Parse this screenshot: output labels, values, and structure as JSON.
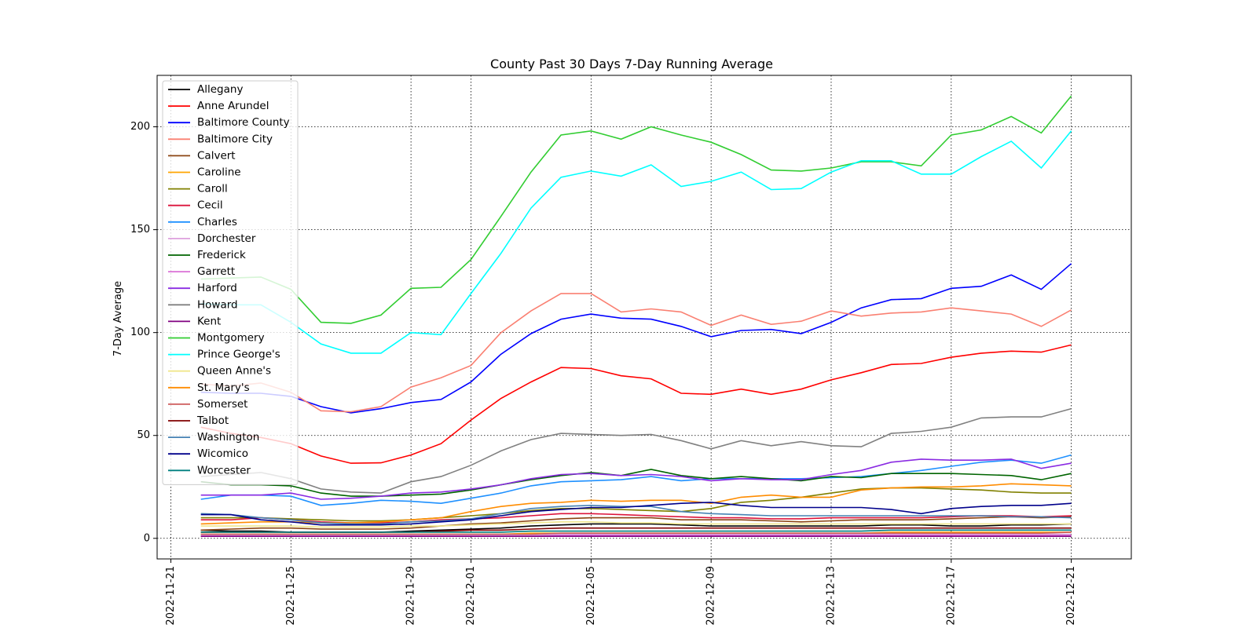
{
  "chart_data": {
    "type": "line",
    "title": "County Past 30 Days 7-Day Running Average",
    "xlabel": "",
    "ylabel": "7-Day Average",
    "x_ticks": [
      "2022-11-21",
      "2022-11-25",
      "2022-11-29",
      "2022-12-01",
      "2022-12-05",
      "2022-12-09",
      "2022-12-13",
      "2022-12-17",
      "2022-12-21"
    ],
    "y_ticks": [
      0,
      50,
      100,
      150,
      200
    ],
    "xlim": [
      "2022-11-20T13:00",
      "2022-12-23T00:00"
    ],
    "ylim": [
      -10,
      225
    ],
    "grid": true,
    "legend_position": "upper-left",
    "x": [
      "2022-11-22",
      "2022-11-23",
      "2022-11-24",
      "2022-11-25",
      "2022-11-26",
      "2022-11-27",
      "2022-11-28",
      "2022-11-29",
      "2022-11-30",
      "2022-12-01",
      "2022-12-02",
      "2022-12-03",
      "2022-12-04",
      "2022-12-05",
      "2022-12-06",
      "2022-12-07",
      "2022-12-08",
      "2022-12-09",
      "2022-12-10",
      "2022-12-11",
      "2022-12-12",
      "2022-12-13",
      "2022-12-14",
      "2022-12-15",
      "2022-12-16",
      "2022-12-17",
      "2022-12-18",
      "2022-12-19",
      "2022-12-20",
      "2022-12-21"
    ],
    "series": [
      {
        "name": "Allegany",
        "color": "#000000",
        "values": [
          4,
          3.5,
          3.5,
          3,
          3,
          3,
          3,
          3.5,
          4,
          4.5,
          5,
          6,
          6.5,
          7,
          7,
          7,
          6.5,
          6,
          6,
          6,
          6,
          6,
          6,
          6.5,
          6.5,
          6,
          6,
          6.5,
          6.5,
          7
        ]
      },
      {
        "name": "Anne Arundel",
        "color": "#ff0000",
        "values": [
          54,
          51,
          49,
          46,
          40,
          36.5,
          36.7,
          40.5,
          46,
          57.5,
          68,
          76,
          83,
          82.5,
          79,
          77.5,
          70.5,
          70,
          72.5,
          70,
          72.5,
          77,
          80.5,
          84.5,
          85,
          88,
          90,
          91,
          90.5,
          94
        ]
      },
      {
        "name": "Baltimore County",
        "color": "#0000ff",
        "values": [
          71,
          70.5,
          70.5,
          69,
          64,
          61,
          63,
          66,
          67.5,
          76,
          89.5,
          99.5,
          106.5,
          109,
          107,
          106.5,
          103,
          98,
          101,
          101.5,
          99.5,
          105,
          112,
          116,
          116.5,
          121.5,
          122.5,
          128,
          121,
          133.5
        ]
      },
      {
        "name": "Baltimore City",
        "color": "#fa8072",
        "values": [
          75,
          74,
          75.5,
          71,
          62,
          61.5,
          64,
          73.5,
          78,
          84,
          100,
          110.5,
          119,
          119,
          110,
          111.5,
          110,
          103.5,
          108.5,
          104,
          105.5,
          110.5,
          108,
          109.5,
          110,
          112,
          110.5,
          109,
          103,
          111
        ]
      },
      {
        "name": "Calvert",
        "color": "#8b4513",
        "values": [
          4,
          4.5,
          5,
          5,
          4.5,
          4.5,
          4.5,
          5,
          6,
          7,
          7.5,
          8.5,
          9.5,
          10,
          10,
          10,
          9,
          9,
          9,
          8.5,
          8,
          8.5,
          9,
          9,
          9,
          9.5,
          10,
          10.5,
          10,
          10.5
        ]
      },
      {
        "name": "Caroline",
        "color": "#ffa500",
        "values": [
          2,
          2,
          2,
          2,
          2,
          2,
          2,
          2,
          2,
          2,
          2,
          2.5,
          2.5,
          2.5,
          2.5,
          2.5,
          2.5,
          2.5,
          2.5,
          2.5,
          2.5,
          2.5,
          2.5,
          3,
          3,
          3,
          3,
          3,
          3,
          3
        ]
      },
      {
        "name": "Caroll",
        "color": "#808000",
        "values": [
          10,
          10,
          10,
          9.5,
          9,
          8.5,
          8.5,
          9,
          10,
          11,
          12,
          13.5,
          14.5,
          14.5,
          14,
          13.5,
          13,
          14.5,
          17.5,
          18.5,
          20,
          22,
          24,
          24.5,
          24.5,
          24,
          23.5,
          22.5,
          22,
          22
        ]
      },
      {
        "name": "Cecil",
        "color": "#dc143c",
        "values": [
          9,
          9,
          10,
          9,
          8,
          7.5,
          7.5,
          8,
          9,
          9.5,
          10,
          11,
          12,
          12,
          11.5,
          11,
          10.5,
          10,
          10,
          9.5,
          9.5,
          10,
          10,
          10,
          10,
          10.5,
          11,
          11,
          10.5,
          11
        ]
      },
      {
        "name": "Charles",
        "color": "#1e90ff",
        "values": [
          19,
          21,
          21,
          20.5,
          16,
          17,
          18.5,
          18,
          17,
          19.5,
          22,
          25.5,
          27.5,
          28,
          28.5,
          30,
          28,
          29,
          29,
          29,
          29,
          29.5,
          30,
          31.5,
          33,
          35,
          37,
          38,
          36.5,
          40.5
        ]
      },
      {
        "name": "Dorchester",
        "color": "#dda0dd",
        "values": [
          1.5,
          1.5,
          1.5,
          1.5,
          1.5,
          1.5,
          1.5,
          1.5,
          1.5,
          1.5,
          1.5,
          1.5,
          2,
          2,
          2,
          2,
          2,
          2,
          2,
          2,
          2,
          2,
          2,
          2,
          2,
          2,
          2,
          2,
          2,
          2
        ]
      },
      {
        "name": "Frederick",
        "color": "#006400",
        "values": [
          27.5,
          26,
          26,
          25.5,
          22,
          20.5,
          20.5,
          21,
          21.5,
          23.5,
          26,
          28.5,
          30.5,
          32,
          30.5,
          33.5,
          30.5,
          29,
          30,
          29,
          28,
          30,
          29.5,
          31.5,
          31.5,
          31.5,
          31,
          30.5,
          28.5,
          31.5
        ]
      },
      {
        "name": "Garrett",
        "color": "#da70d6",
        "values": [
          1,
          1,
          1,
          1,
          1,
          1,
          1,
          1,
          1,
          1,
          1,
          1,
          1.5,
          1.5,
          1.5,
          1.5,
          1.5,
          1.5,
          1.5,
          1.5,
          1.5,
          1.5,
          1.5,
          1.5,
          1.5,
          1.5,
          1.5,
          1.5,
          1.5,
          1.5
        ]
      },
      {
        "name": "Harford",
        "color": "#8a2be2",
        "values": [
          21,
          21,
          21,
          22,
          19,
          19.5,
          20.5,
          22,
          22.5,
          24,
          26,
          29,
          31,
          31.5,
          30.5,
          31,
          30,
          28,
          29,
          28.5,
          28.5,
          31,
          33,
          37,
          38.5,
          38,
          38,
          38.5,
          34,
          36.5
        ]
      },
      {
        "name": "Howard",
        "color": "#808080",
        "values": [
          30,
          31,
          32,
          29,
          24,
          22.5,
          22,
          27.5,
          30,
          35.5,
          42.5,
          48,
          51,
          50.5,
          50,
          50.5,
          47.5,
          43.5,
          47.5,
          45,
          47,
          45,
          44.5,
          51,
          52,
          54,
          58.5,
          59,
          59,
          63
        ]
      },
      {
        "name": "Kent",
        "color": "#800080",
        "values": [
          1,
          1,
          1,
          1,
          1,
          1,
          1,
          1,
          1,
          1,
          1,
          1,
          1,
          1,
          1,
          1,
          1,
          1,
          1,
          1,
          1,
          1,
          1,
          1,
          1,
          1,
          1,
          1,
          1,
          1
        ]
      },
      {
        "name": "Montgomery",
        "color": "#32cd32",
        "values": [
          126,
          126.5,
          127,
          121,
          105,
          104.5,
          108.5,
          121.5,
          122,
          135.5,
          156.5,
          178,
          196,
          198,
          194,
          200,
          196,
          192.5,
          186.5,
          179,
          178.5,
          180,
          183,
          183,
          181,
          196,
          198.5,
          205,
          197,
          215
        ]
      },
      {
        "name": "Prince George's",
        "color": "#00ffff",
        "values": [
          114,
          113.5,
          113.5,
          105,
          94.5,
          90,
          90,
          100,
          99,
          119,
          138.5,
          160.5,
          175.5,
          178.5,
          176,
          181.5,
          171,
          173.5,
          178,
          169.5,
          170,
          178,
          183.5,
          183.5,
          177,
          177,
          185.5,
          193,
          180,
          198
        ]
      },
      {
        "name": "Queen Anne's",
        "color": "#f0e68c",
        "values": [
          6,
          6,
          6,
          6,
          5.5,
          5.5,
          5.5,
          6,
          6,
          6.5,
          7,
          7.5,
          8,
          8,
          7.5,
          7.5,
          7,
          7,
          7,
          7,
          7,
          7,
          7,
          7,
          7,
          7,
          7,
          7,
          7,
          7
        ]
      },
      {
        "name": "St. Mary's",
        "color": "#ff8c00",
        "values": [
          7,
          7.5,
          8,
          8,
          7.5,
          7.5,
          8,
          9,
          10,
          13,
          15.5,
          17,
          17.5,
          18.5,
          18,
          18.5,
          18.5,
          17,
          20,
          21,
          20,
          20,
          23.5,
          24.5,
          25,
          25,
          25.5,
          26.5,
          26,
          25.5
        ]
      },
      {
        "name": "Somerset",
        "color": "#cd5c5c",
        "values": [
          2,
          2,
          2,
          2,
          2,
          2,
          2,
          2,
          2,
          2,
          2,
          2,
          2.5,
          2.5,
          2.5,
          2.5,
          2.5,
          2.5,
          2.5,
          2.5,
          2.5,
          2.5,
          2.5,
          2.5,
          2.5,
          2.5,
          2.5,
          2.5,
          2.5,
          3
        ]
      },
      {
        "name": "Talbot",
        "color": "#800000",
        "values": [
          3,
          3,
          3,
          3,
          3,
          3,
          3,
          3,
          3.5,
          4,
          4,
          4.5,
          5,
          5,
          5,
          5,
          5,
          5,
          5,
          5,
          5,
          5,
          5,
          5,
          5,
          5,
          5,
          5,
          5,
          5
        ]
      },
      {
        "name": "Washington",
        "color": "#4682b4",
        "values": [
          12,
          11.5,
          10,
          9,
          7.5,
          7,
          7,
          8,
          8.5,
          9.5,
          12,
          14.5,
          15.5,
          16,
          15.5,
          15.5,
          13,
          12,
          11.5,
          11,
          11,
          11,
          11,
          11,
          11,
          11,
          11,
          10.5,
          10.5,
          10
        ]
      },
      {
        "name": "Wicomico",
        "color": "#00008b",
        "values": [
          11.5,
          11.5,
          9,
          8,
          6.5,
          6.5,
          6.5,
          7,
          8,
          9,
          11,
          13,
          14,
          15,
          15,
          16,
          17,
          17.5,
          16,
          15,
          15,
          15,
          15,
          14,
          12,
          14.5,
          15.5,
          16,
          16,
          17
        ]
      },
      {
        "name": "Worcester",
        "color": "#008080",
        "values": [
          3,
          3,
          3,
          3,
          3,
          3,
          3,
          3,
          3,
          3,
          3,
          3.5,
          3.5,
          3.5,
          3.5,
          3.5,
          3.5,
          3.5,
          3.5,
          3.5,
          3.5,
          3.5,
          3.5,
          4,
          4,
          4,
          4,
          4,
          4,
          4
        ]
      }
    ]
  }
}
